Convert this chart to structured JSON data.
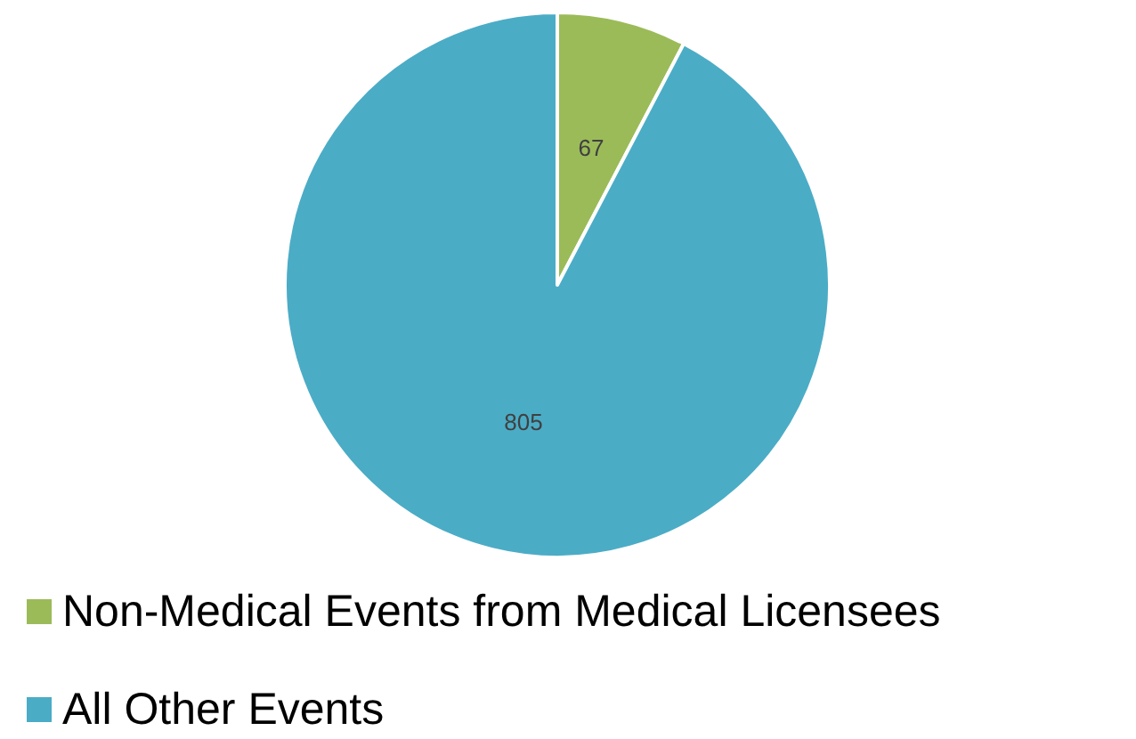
{
  "chart_data": {
    "type": "pie",
    "categories": [
      "Non-Medical Events from Medical Licensees",
      "All Other Events"
    ],
    "values": [
      67,
      805
    ],
    "colors": [
      "#9bbb59",
      "#4bacc6"
    ],
    "data_labels": true,
    "legend": "bottom left"
  }
}
